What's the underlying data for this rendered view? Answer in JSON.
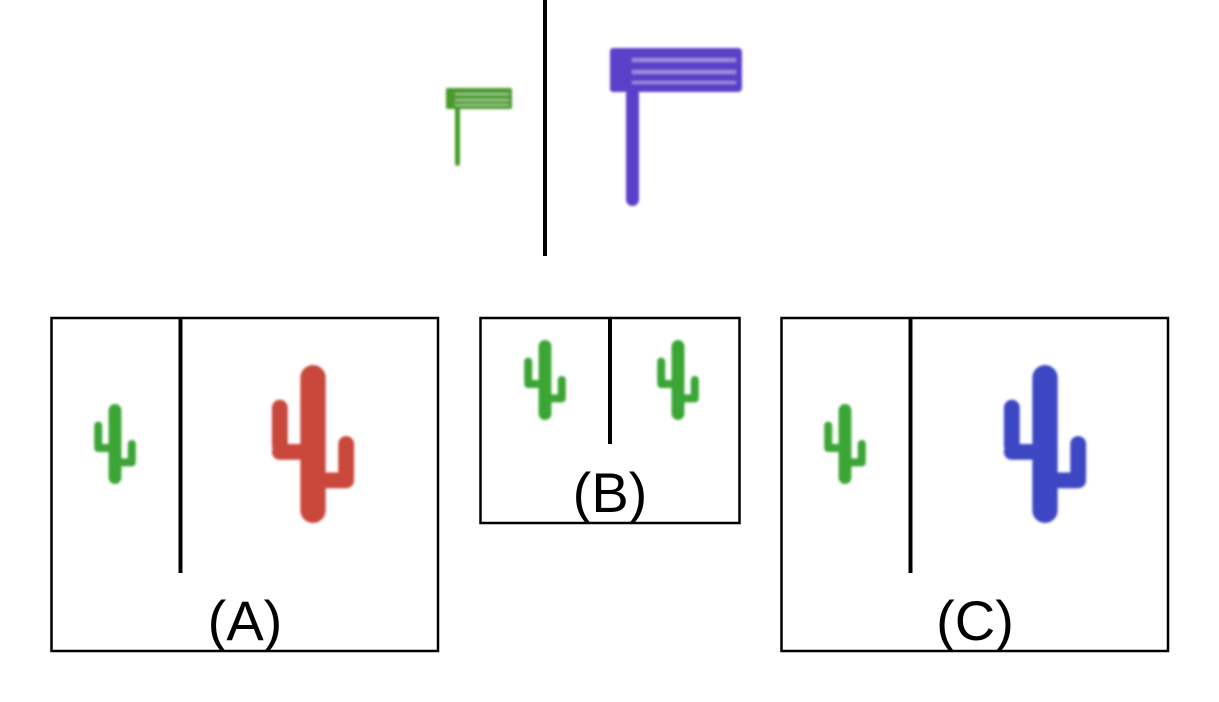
{
  "colors": {
    "green": "#3aa535",
    "rattle_green": "#4a9a2c",
    "purple": "#5a3fc8",
    "red": "#c9473a",
    "blue": "#3d46c4",
    "line": "#000000",
    "background": "#ffffff"
  },
  "prompt": {
    "left_item": {
      "icon": "rattle-icon",
      "color": "rattle_green",
      "size": "small"
    },
    "right_item": {
      "icon": "rattle-icon",
      "color": "purple",
      "size": "large"
    }
  },
  "options": [
    {
      "label": "(A)",
      "left_item": {
        "icon": "cactus-icon",
        "color": "green",
        "size": "small"
      },
      "right_item": {
        "icon": "cactus-icon",
        "color": "red",
        "size": "large"
      }
    },
    {
      "label": "(B)",
      "left_item": {
        "icon": "cactus-icon",
        "color": "green",
        "size": "small"
      },
      "right_item": {
        "icon": "cactus-icon",
        "color": "green",
        "size": "small"
      }
    },
    {
      "label": "(C)",
      "left_item": {
        "icon": "cactus-icon",
        "color": "green",
        "size": "small"
      },
      "right_item": {
        "icon": "cactus-icon",
        "color": "blue",
        "size": "large"
      }
    }
  ]
}
